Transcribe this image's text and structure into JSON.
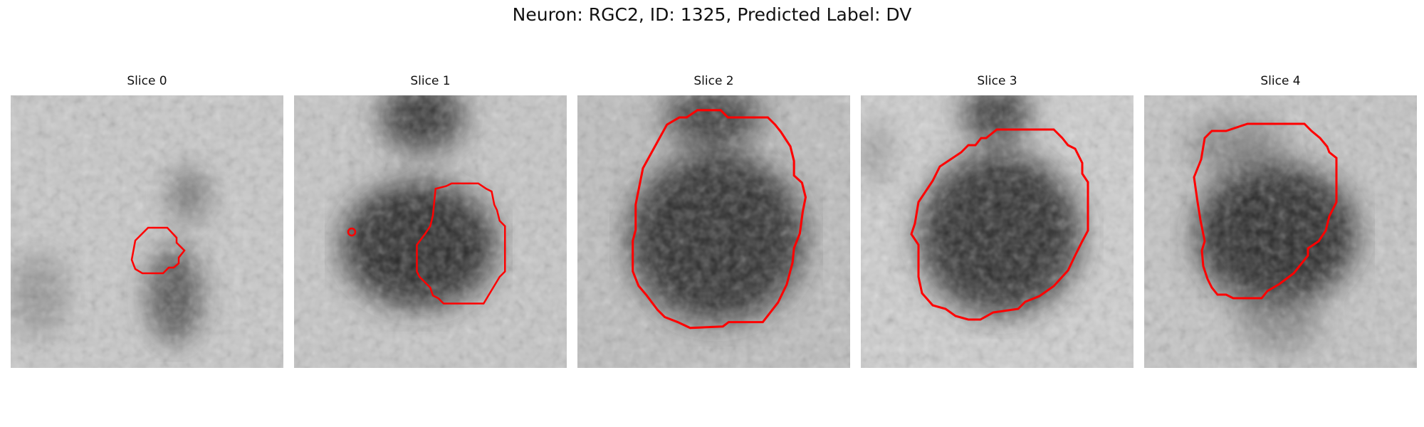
{
  "figure": {
    "title": "Neuron: RGC2, ID: 1325, Predicted Label: DV",
    "outline_color": "#ff0000"
  },
  "panels": [
    {
      "title": "Slice 0"
    },
    {
      "title": "Slice 1"
    },
    {
      "title": "Slice 2"
    },
    {
      "title": "Slice 3"
    },
    {
      "title": "Slice 4"
    }
  ]
}
